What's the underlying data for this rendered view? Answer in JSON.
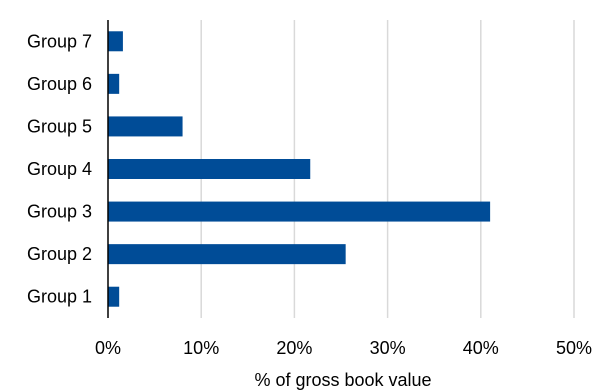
{
  "chart_data": {
    "type": "bar",
    "orientation": "horizontal",
    "categories": [
      "Group 1",
      "Group 2",
      "Group 3",
      "Group 4",
      "Group 5",
      "Group 6",
      "Group 7"
    ],
    "values": [
      1.2,
      25.5,
      41.0,
      21.7,
      8.0,
      1.2,
      1.6
    ],
    "xlabel": "% of gross book value",
    "ylabel": "",
    "xlim": [
      0,
      50
    ],
    "xticks": [
      0,
      10,
      20,
      30,
      40,
      50
    ],
    "xtick_labels": [
      "0%",
      "10%",
      "20%",
      "30%",
      "40%",
      "50%"
    ],
    "grid": "vertical",
    "legend": "none",
    "colors": {
      "bar": "#004C97",
      "grid": "#D9D9D9",
      "axis": "#000000"
    }
  }
}
